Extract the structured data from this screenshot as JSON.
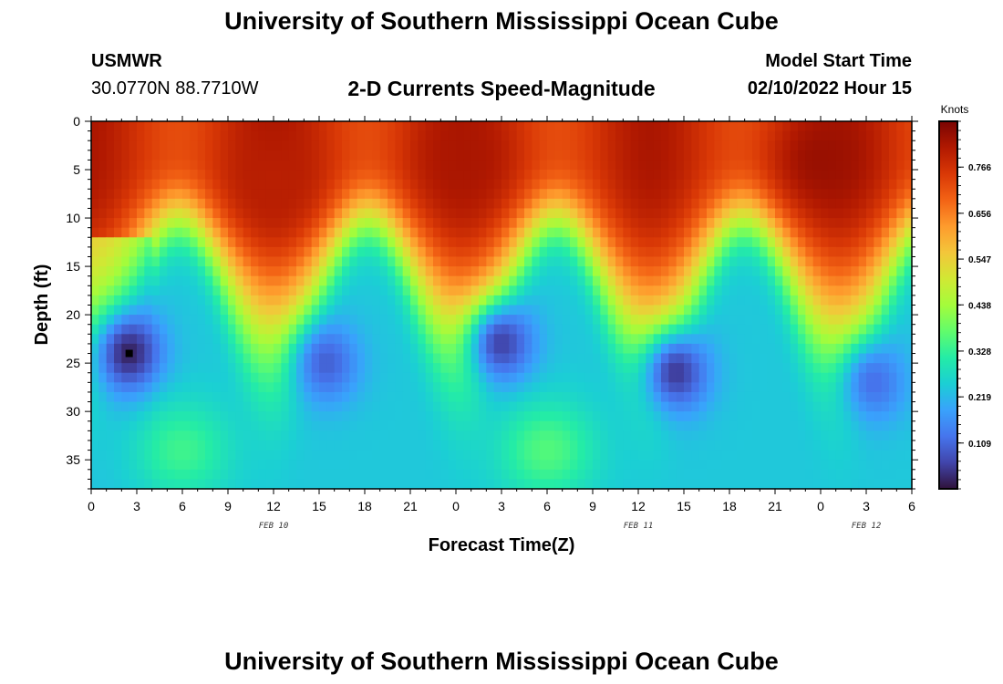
{
  "header": {
    "title": "University of Southern Mississippi Ocean Cube",
    "station": "USMWR",
    "coords": "30.0770N  88.7710W",
    "subtitle": "2-D Currents Speed-Magnitude",
    "model_start_label": "Model Start Time",
    "model_start_value": "02/10/2022 Hour 15"
  },
  "footer": {
    "title": "University of Southern Mississippi Ocean Cube"
  },
  "chart_data": {
    "type": "heatmap",
    "xlabel": "Forecast Time(Z)",
    "ylabel": "Depth (ft)",
    "xlim": [
      0,
      54
    ],
    "ylim": [
      38,
      0
    ],
    "x_ticks": [
      0,
      3,
      6,
      9,
      12,
      15,
      18,
      21,
      24,
      27,
      30,
      33,
      36,
      39,
      42,
      45,
      48,
      51,
      54
    ],
    "x_tick_labels": [
      "0",
      "3",
      "6",
      "9",
      "12",
      "15",
      "18",
      "21",
      "0",
      "3",
      "6",
      "9",
      "12",
      "15",
      "18",
      "21",
      "0",
      "3",
      "6"
    ],
    "date_labels": [
      {
        "x": 12,
        "text": "FEB 10"
      },
      {
        "x": 36,
        "text": "FEB 11"
      },
      {
        "x": 51,
        "text": "FEB 12"
      }
    ],
    "y_ticks": [
      0,
      5,
      10,
      15,
      20,
      25,
      30,
      35
    ],
    "colorbar": {
      "unit": "Knots",
      "min": 0.0,
      "max": 0.875,
      "ticks": [
        0.109,
        0.219,
        0.328,
        0.438,
        0.547,
        0.656,
        0.766
      ],
      "colors": [
        "#30123b",
        "#4145ab",
        "#4675ed",
        "#39a2fc",
        "#1bcfd4",
        "#24eca6",
        "#61fc6c",
        "#a4fc3b",
        "#d1e834",
        "#f3c63a",
        "#fe9b2d",
        "#f36315",
        "#d93806",
        "#b11901",
        "#7a0402"
      ]
    },
    "grid": false,
    "legend": "colorbar-right",
    "depth_bottom": 38,
    "speed_features": [
      {
        "hour": 2.5,
        "depth": 24,
        "speed": 0.02,
        "kind": "min"
      },
      {
        "hour": 15.5,
        "depth": 25,
        "speed": 0.1,
        "kind": "min"
      },
      {
        "hour": 27,
        "depth": 23,
        "speed": 0.06,
        "kind": "min"
      },
      {
        "hour": 38.5,
        "depth": 26,
        "speed": 0.05,
        "kind": "min"
      },
      {
        "hour": 51.5,
        "depth": 27,
        "speed": 0.12,
        "kind": "min"
      },
      {
        "hour": 6,
        "depth": 34,
        "speed": 0.34,
        "kind": "max"
      },
      {
        "hour": 30,
        "depth": 34,
        "speed": 0.36,
        "kind": "max"
      },
      {
        "hour": 12,
        "depth": 6,
        "speed": 0.8,
        "kind": "max"
      },
      {
        "hour": 24.5,
        "depth": 4,
        "speed": 0.82,
        "kind": "max"
      },
      {
        "hour": 48,
        "depth": 4,
        "speed": 0.84,
        "kind": "max"
      }
    ],
    "min_marker": {
      "hour": 2.5,
      "depth": 24
    }
  }
}
